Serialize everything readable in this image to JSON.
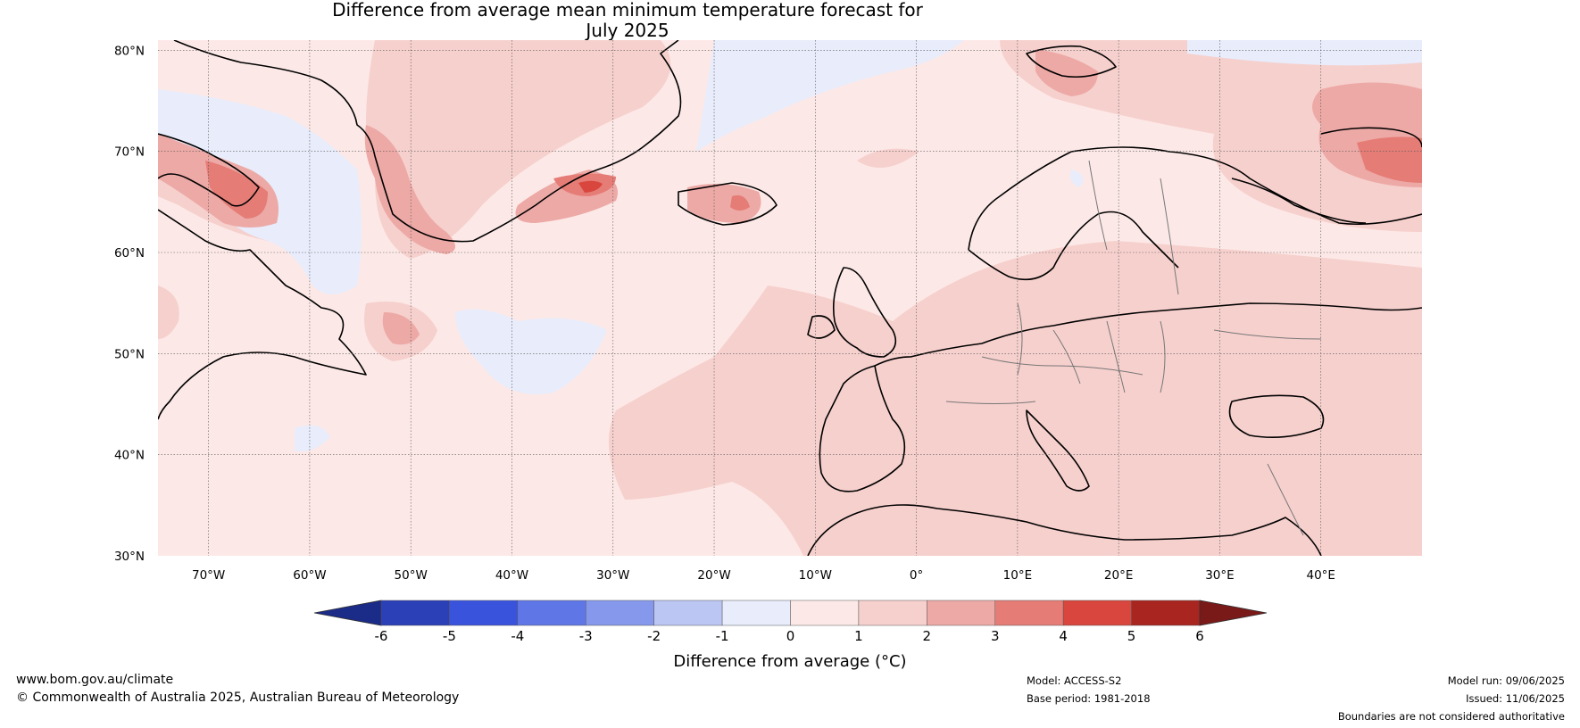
{
  "title": {
    "line1": "Difference from average mean minimum temperature forecast for",
    "line2": "July 2025"
  },
  "map": {
    "lat_labels": [
      "80°N",
      "70°N",
      "60°N",
      "50°N",
      "40°N",
      "30°N"
    ],
    "lon_labels": [
      "70°W",
      "60°W",
      "50°W",
      "40°W",
      "30°W",
      "20°W",
      "10°W",
      "0°",
      "10°E",
      "20°E",
      "30°E",
      "40°E"
    ],
    "lat_range": [
      30,
      81
    ],
    "lon_range": [
      -75,
      50
    ]
  },
  "colorbar": {
    "tick_labels": [
      "-6",
      "-5",
      "-4",
      "-3",
      "-2",
      "-1",
      "0",
      "1",
      "2",
      "3",
      "4",
      "5",
      "6"
    ],
    "colors": [
      "#1a2b88",
      "#2b3fb6",
      "#3a53dd",
      "#5f76e6",
      "#8598ec",
      "#bcc6f3",
      "#e8ecfb",
      "#fce9e7",
      "#f6d0cd",
      "#eda9a6",
      "#e57c76",
      "#d8463d",
      "#a82520",
      "#7a1a18"
    ],
    "label": "Difference from average (°C)"
  },
  "footer": {
    "website": "www.bom.gov.au/climate",
    "copyright": "© Commonwealth of Australia 2025, Australian Bureau of Meteorology",
    "model": "Model: ACCESS-S2",
    "base_period": "Base period: 1981-2018",
    "model_run": "Model run: 09/06/2025",
    "issued": "Issued: 11/06/2025",
    "disclaimer": "Boundaries are not considered authoritative"
  }
}
